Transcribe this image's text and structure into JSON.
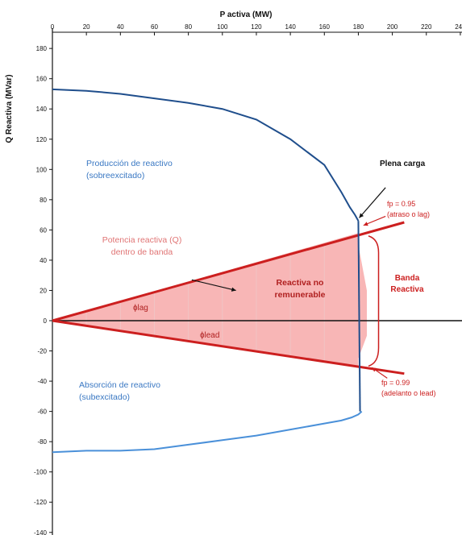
{
  "chart_data": {
    "type": "area",
    "title": "P activa (MW)",
    "xlabel": "P activa (MW)",
    "ylabel": "Q Reactiva (MVar)",
    "xlim": [
      0,
      230
    ],
    "ylim": [
      -140,
      180
    ],
    "x_ticks": [
      "0",
      "20",
      "40",
      "60",
      "80",
      "100",
      "120",
      "140",
      "160",
      "180",
      "200",
      "220",
      "240"
    ],
    "y_ticks": [
      "180",
      "160",
      "140",
      "120",
      "100",
      "80",
      "60",
      "40",
      "20",
      "0",
      "-20",
      "-40",
      "-60",
      "-80",
      "-100",
      "-120",
      "-140"
    ],
    "grid": false,
    "series": [
      {
        "name": "Producción de reactivo",
        "color": "#1f4e8c",
        "x": [
          0,
          20,
          40,
          60,
          80,
          100,
          120,
          140,
          160,
          170,
          175,
          178,
          180
        ],
        "y": [
          153,
          152,
          150,
          147,
          144,
          140,
          133,
          120,
          103,
          85,
          75,
          70,
          66
        ]
      },
      {
        "name": "Absorción de reactivo",
        "color": "#4a90d9",
        "x": [
          0,
          20,
          40,
          60,
          80,
          100,
          120,
          140,
          160,
          170,
          176,
          180,
          182
        ],
        "y": [
          -87,
          -86,
          -86,
          -85,
          -82,
          -79,
          -76,
          -72,
          -68,
          -66,
          -64,
          -62,
          -60
        ]
      },
      {
        "name": "fp = 0.95 (atraso o lag)",
        "color": "#cc1f1f",
        "x": [
          0,
          207
        ],
        "y": [
          0,
          65
        ]
      },
      {
        "name": "fp = 0.99 (adelanto o lead)",
        "color": "#cc1f1f",
        "x": [
          0,
          207
        ],
        "y": [
          0,
          -35
        ]
      },
      {
        "name": "Potencia reactiva (Q) dentro de banda",
        "color": "#f5aaaa",
        "x": [
          0,
          180,
          180,
          185,
          185,
          180,
          180,
          0
        ],
        "y": [
          0,
          58,
          50,
          20,
          -10,
          -25,
          -30,
          0
        ]
      }
    ],
    "annotations": {
      "produccion": "Producción de reactivo\n(sobreexcitado)",
      "absorcion": "Absorción de reactivo\n(subexcitado)",
      "potencia_banda": "Potencia reactiva (Q)\ndentro de banda",
      "reactiva_no": "Reactiva no\nremunerable",
      "plena_carga": "Plena carga",
      "fp095": "fp = 0.95\n(atraso o lag)",
      "fp099": "fp = 0.99\n(adelanto o lead)",
      "banda": "Banda\nReactiva",
      "phi_lag": "ɸlag",
      "phi_lead": "ɸlead"
    },
    "colors": {
      "blue_dark": "#1f4e8c",
      "blue_light": "#4a90d9",
      "red": "#cc1f1f",
      "pink_fill": "#f8b6b6",
      "pink_text": "#e07474",
      "label_blue": "#3a78c3"
    }
  }
}
